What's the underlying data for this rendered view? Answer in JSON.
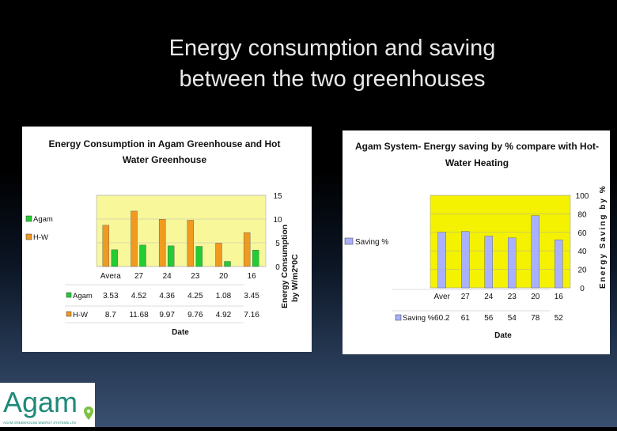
{
  "slide": {
    "title_line1": "Energy consumption and saving",
    "title_line2": "between the two greenhouses"
  },
  "colors": {
    "plot_bg": "#f8f79a",
    "agam": "#22cc33",
    "hw": "#f09a20",
    "saving": "#a9b1ff",
    "yellow_bg": "#f4f200"
  },
  "logo": {
    "name": "Agam",
    "tagline": "AGAM GREENHOUSE ENERGY SYSTEMS LTD",
    "icon": "location-pin-icon"
  },
  "chart_data": [
    {
      "type": "bar",
      "title_line1": "Energy Consumption in Agam Greenhouse and Hot",
      "title_line2": "Water Greenhouse",
      "xlabel": "Date",
      "ylabel_line1": "Energy Consumption",
      "ylabel_line2": "by W/m2*0C",
      "categories": [
        "Avera",
        "27",
        "24",
        "23",
        "20",
        "16"
      ],
      "ylim": [
        0,
        15
      ],
      "yticks": [
        "15",
        "10",
        "5",
        "0"
      ],
      "legend_position": "left",
      "series": [
        {
          "name": "Agam",
          "values": [
            3.53,
            4.52,
            4.36,
            4.25,
            1.08,
            3.45
          ],
          "labels": [
            "3.53",
            "4.52",
            "4.36",
            "4.25",
            "1.08",
            "3.45"
          ]
        },
        {
          "name": "H-W",
          "values": [
            8.7,
            11.68,
            9.97,
            9.76,
            4.92,
            7.16
          ],
          "labels": [
            "8.7",
            "11.68",
            "9.97",
            "9.76",
            "4.92",
            "7.16"
          ]
        }
      ]
    },
    {
      "type": "bar",
      "title_line1": "Agam System- Energy saving  by % compare with Hot-",
      "title_line2": "Water Heating",
      "xlabel": "Date",
      "ylabel": "Energy Saving by %",
      "categories": [
        "Aver",
        "27",
        "24",
        "23",
        "20",
        "16"
      ],
      "ylim": [
        0,
        100
      ],
      "yticks": [
        "100",
        "80",
        "60",
        "40",
        "20",
        "0"
      ],
      "legend_position": "left",
      "series": [
        {
          "name": "Saving %",
          "values": [
            60.2,
            61,
            56,
            54,
            78,
            52
          ],
          "labels": [
            "60.2",
            "61",
            "56",
            "54",
            "78",
            "52"
          ]
        }
      ]
    }
  ]
}
